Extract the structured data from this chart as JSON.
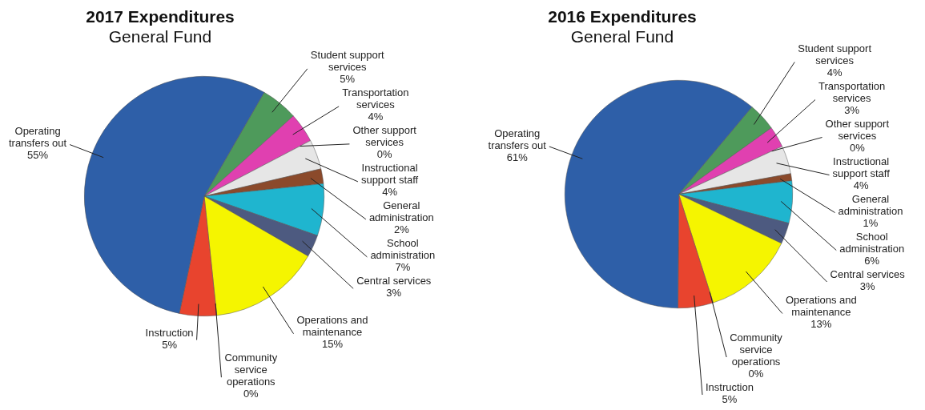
{
  "chart_data": [
    {
      "type": "pie",
      "title": "2017 Expenditures",
      "subtitle": "General Fund",
      "legend": false,
      "categories": [
        "Student support services",
        "Transportation services",
        "Other support services",
        "Instructional support staff",
        "General administration",
        "School administration",
        "Central services",
        "Operations and maintenance",
        "Community service operations",
        "Instruction",
        "Operating transfers out"
      ],
      "values": [
        5,
        4,
        0,
        4,
        2,
        7,
        3,
        15,
        0,
        5,
        55
      ],
      "value_labels": [
        "5%",
        "4%",
        "0%",
        "4%",
        "2%",
        "7%",
        "3%",
        "15%",
        "0%",
        "5%",
        "55%"
      ],
      "colors": [
        "#4e9a5b",
        "#e040b0",
        "#8a2be2",
        "#e6e6e6",
        "#8b4a2b",
        "#1fb5cf",
        "#4d5a80",
        "#f5f500",
        "#9acd32",
        "#e8442e",
        "#2e5fa8"
      ]
    },
    {
      "type": "pie",
      "title": "2016 Expenditures",
      "subtitle": "General Fund",
      "legend": false,
      "categories": [
        "Student support services",
        "Transportation services",
        "Other support services",
        "Instructional support staff",
        "General administration",
        "School administration",
        "Central services",
        "Operations and maintenance",
        "Community service operations",
        "Instruction",
        "Operating transfers out"
      ],
      "values": [
        4,
        3,
        0,
        4,
        1,
        6,
        3,
        13,
        0,
        5,
        61
      ],
      "value_labels": [
        "4%",
        "3%",
        "0%",
        "4%",
        "1%",
        "6%",
        "3%",
        "13%",
        "0%",
        "5%",
        "61%"
      ],
      "colors": [
        "#4e9a5b",
        "#e040b0",
        "#8a2be2",
        "#e6e6e6",
        "#8b4a2b",
        "#1fb5cf",
        "#4d5a80",
        "#f5f500",
        "#9acd32",
        "#e8442e",
        "#2e5fa8"
      ]
    }
  ]
}
